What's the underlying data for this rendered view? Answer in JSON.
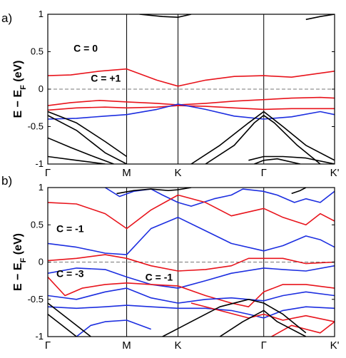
{
  "chart_data": [
    {
      "type": "line",
      "panel_label": "a)",
      "ylabel": "E − E",
      "ylabel_sub": "F",
      "ylabel_unit": " (eV)",
      "ylim": [
        -1,
        1
      ],
      "xlim": [
        0,
        1
      ],
      "yticks": [
        -1,
        -0.5,
        0,
        0.5,
        1
      ],
      "ytick_labels": [
        "-1",
        "-0.5",
        "0",
        "0.5",
        "1"
      ],
      "xticks": [
        0,
        0.275,
        0.454,
        0.753,
        1
      ],
      "xtick_labels": [
        "Γ",
        "M",
        "K",
        "Γ",
        "K'"
      ],
      "fermi_level": 0,
      "annotations": [
        {
          "text": "C = 0",
          "x": 0.09,
          "y": 0.5
        },
        {
          "text": "C = +1",
          "x": 0.15,
          "y": 0.1
        }
      ],
      "colors": {
        "red": "#e8141c",
        "blue": "#1c2ee0",
        "black": "#000000",
        "pink": "#e040e0"
      },
      "series": [
        {
          "color": "red",
          "x": [
            0,
            0.08,
            0.18,
            0.275,
            0.38,
            0.454,
            0.55,
            0.65,
            0.753,
            0.85,
            1
          ],
          "y": [
            0.18,
            0.19,
            0.24,
            0.27,
            0.12,
            0.04,
            0.12,
            0.17,
            0.18,
            0.16,
            0.24
          ]
        },
        {
          "color": "red",
          "x": [
            0,
            0.08,
            0.18,
            0.275,
            0.38,
            0.454,
            0.55,
            0.65,
            0.753,
            0.85,
            0.95,
            1
          ],
          "y": [
            -0.22,
            -0.18,
            -0.15,
            -0.17,
            -0.19,
            -0.21,
            -0.19,
            -0.16,
            -0.14,
            -0.12,
            -0.11,
            -0.12
          ]
        },
        {
          "color": "red",
          "x": [
            0,
            0.1,
            0.2,
            0.275,
            0.38,
            0.454,
            0.55,
            0.65,
            0.753,
            0.85,
            1
          ],
          "y": [
            -0.28,
            -0.25,
            -0.24,
            -0.25,
            -0.24,
            -0.22,
            -0.23,
            -0.25,
            -0.27,
            -0.26,
            -0.26
          ]
        },
        {
          "color": "blue",
          "x": [
            0,
            0.1,
            0.2,
            0.275,
            0.38,
            0.454,
            0.55,
            0.65,
            0.753,
            0.85,
            0.95,
            1
          ],
          "y": [
            -0.4,
            -0.39,
            -0.36,
            -0.34,
            -0.27,
            -0.2,
            -0.27,
            -0.36,
            -0.4,
            -0.37,
            -0.3,
            -0.34
          ]
        },
        {
          "color": "black",
          "x": [
            0,
            0.1,
            0.2,
            0.275
          ],
          "y": [
            -0.3,
            -0.45,
            -0.7,
            -0.9
          ]
        },
        {
          "color": "black",
          "x": [
            0,
            0.1,
            0.2,
            0.275
          ],
          "y": [
            -0.35,
            -0.55,
            -0.85,
            -1.0
          ]
        },
        {
          "color": "black",
          "x": [
            0,
            0.08,
            0.16,
            0.23
          ],
          "y": [
            -0.65,
            -0.78,
            -0.9,
            -1.0
          ]
        },
        {
          "color": "black",
          "x": [
            0,
            0.1,
            0.2
          ],
          "y": [
            -0.9,
            -0.95,
            -1.0
          ]
        },
        {
          "color": "black",
          "x": [
            0.5,
            0.6,
            0.7,
            0.753,
            0.82,
            0.9,
            1
          ],
          "y": [
            -1.0,
            -0.75,
            -0.45,
            -0.3,
            -0.5,
            -0.75,
            -0.95
          ]
        },
        {
          "color": "black",
          "x": [
            0.55,
            0.65,
            0.72,
            0.753,
            0.79,
            0.87,
            0.95
          ],
          "y": [
            -1.0,
            -0.75,
            -0.45,
            -0.35,
            -0.45,
            -0.75,
            -1.0
          ]
        },
        {
          "color": "black",
          "x": [
            0.7,
            0.753,
            0.82,
            0.9,
            1
          ],
          "y": [
            -0.95,
            -0.9,
            -0.9,
            -0.92,
            -1.0
          ]
        },
        {
          "color": "black",
          "x": [
            0.72,
            0.753,
            0.8,
            0.88
          ],
          "y": [
            -1.0,
            -0.95,
            -0.93,
            -1.0
          ]
        },
        {
          "color": "black",
          "x": [
            0.32,
            0.4,
            0.454,
            0.5
          ],
          "y": [
            1.0,
            0.97,
            0.96,
            1.0
          ]
        },
        {
          "color": "black",
          "x": [
            0.9,
            0.95,
            1
          ],
          "y": [
            0.93,
            0.97,
            1.0
          ]
        }
      ]
    },
    {
      "type": "line",
      "panel_label": "b)",
      "ylabel": "E − E",
      "ylabel_sub": "F",
      "ylabel_unit": " (eV)",
      "ylim": [
        -1,
        1
      ],
      "xlim": [
        0,
        1
      ],
      "yticks": [
        -1,
        -0.5,
        0,
        0.5,
        1
      ],
      "ytick_labels": [
        "-1",
        "-0.5",
        "0",
        "0.5",
        "1"
      ],
      "xticks": [
        0,
        0.275,
        0.454,
        0.753,
        1
      ],
      "xtick_labels": [
        "Γ",
        "M",
        "K",
        "Γ",
        "K'"
      ],
      "fermi_level": 0,
      "annotations": [
        {
          "text": "C = -1",
          "x": 0.03,
          "y": 0.4
        },
        {
          "text": "C = -3",
          "x": 0.03,
          "y": -0.2
        },
        {
          "text": "C = -1",
          "x": 0.34,
          "y": -0.25
        }
      ],
      "colors": {
        "red": "#e8141c",
        "blue": "#1c2ee0",
        "black": "#000000",
        "pink": "#e040e0"
      },
      "series": [
        {
          "color": "blue",
          "x": [
            0.2,
            0.25,
            0.3,
            0.36,
            0.4,
            0.454
          ],
          "y": [
            1.0,
            0.88,
            0.95,
            0.98,
            0.9,
            0.8
          ]
        },
        {
          "color": "blue",
          "x": [
            0.454,
            0.5,
            0.58,
            0.64,
            0.68,
            0.75,
            0.8,
            0.86,
            0.9,
            0.95,
            1
          ],
          "y": [
            0.8,
            0.75,
            0.85,
            0.9,
            0.98,
            0.95,
            0.9,
            0.8,
            0.85,
            0.8,
            0.95
          ]
        },
        {
          "color": "red",
          "x": [
            0,
            0.1,
            0.2,
            0.275,
            0.36,
            0.454,
            0.55,
            0.64,
            0.753,
            0.82,
            0.9,
            0.95,
            1
          ],
          "y": [
            0.8,
            0.78,
            0.65,
            0.45,
            0.7,
            0.9,
            0.8,
            0.62,
            0.72,
            0.6,
            0.5,
            0.65,
            0.55
          ]
        },
        {
          "color": "blue",
          "x": [
            0,
            0.1,
            0.2,
            0.275,
            0.36,
            0.454,
            0.55,
            0.64,
            0.753,
            0.82,
            0.9,
            0.95,
            1
          ],
          "y": [
            0.25,
            0.2,
            0.12,
            0.1,
            0.45,
            0.6,
            0.42,
            0.25,
            0.15,
            0.22,
            0.35,
            0.3,
            0.2
          ]
        },
        {
          "color": "red",
          "x": [
            0,
            0.1,
            0.2,
            0.275,
            0.36,
            0.454,
            0.55,
            0.64,
            0.7,
            0.753,
            0.82,
            0.9,
            1
          ],
          "y": [
            0.02,
            0.05,
            0.1,
            0.05,
            -0.05,
            -0.12,
            -0.1,
            -0.05,
            0.05,
            0.05,
            0.05,
            -0.02,
            0.0
          ]
        },
        {
          "color": "blue",
          "x": [
            0,
            0.1,
            0.2,
            0.275,
            0.36,
            0.454,
            0.55,
            0.64,
            0.753,
            0.82,
            0.9,
            1
          ],
          "y": [
            -0.15,
            -0.08,
            -0.1,
            -0.2,
            -0.3,
            -0.35,
            -0.25,
            -0.15,
            -0.08,
            -0.1,
            -0.12,
            -0.05
          ]
        },
        {
          "color": "red",
          "x": [
            0,
            0.06,
            0.12,
            0.2,
            0.275,
            0.36,
            0.454,
            0.55,
            0.64,
            0.7,
            0.753,
            0.82,
            0.9,
            1
          ],
          "y": [
            -0.2,
            -0.45,
            -0.35,
            -0.3,
            -0.28,
            -0.3,
            -0.32,
            -0.45,
            -0.55,
            -0.6,
            -0.4,
            -0.3,
            -0.3,
            -0.35
          ]
        },
        {
          "color": "blue",
          "x": [
            0,
            0.1,
            0.2,
            0.275,
            0.36,
            0.454,
            0.55,
            0.64,
            0.753,
            0.82,
            0.9,
            1
          ],
          "y": [
            -0.45,
            -0.5,
            -0.4,
            -0.35,
            -0.48,
            -0.55,
            -0.5,
            -0.48,
            -0.52,
            -0.45,
            -0.4,
            -0.45
          ]
        },
        {
          "color": "blue",
          "x": [
            0,
            0.1,
            0.2,
            0.275,
            0.36,
            0.454,
            0.55,
            0.64,
            0.7,
            0.753,
            0.82,
            0.9,
            1
          ],
          "y": [
            -0.6,
            -0.62,
            -0.6,
            -0.58,
            -0.6,
            -0.62,
            -0.62,
            -0.65,
            -0.7,
            -0.75,
            -0.65,
            -0.6,
            -0.62
          ]
        },
        {
          "color": "red",
          "x": [
            0.5,
            0.6,
            0.7,
            0.753,
            0.82,
            0.9,
            1
          ],
          "y": [
            -0.55,
            -0.65,
            -0.75,
            -0.7,
            -0.78,
            -0.72,
            -0.8
          ]
        },
        {
          "color": "blue",
          "x": [
            0.1,
            0.15,
            0.2,
            0.275,
            0.36
          ],
          "y": [
            -1.0,
            -0.85,
            -0.8,
            -0.78,
            -0.9
          ]
        },
        {
          "color": "red",
          "x": [
            0.78,
            0.85,
            0.9,
            0.95,
            1
          ],
          "y": [
            -1.0,
            -0.85,
            -0.9,
            -0.95,
            -0.8
          ]
        },
        {
          "color": "black",
          "x": [
            0,
            0.05,
            0.1,
            0.15
          ],
          "y": [
            -0.55,
            -0.7,
            -0.85,
            -1.0
          ]
        },
        {
          "color": "black",
          "x": [
            0,
            0.05,
            0.1
          ],
          "y": [
            -0.7,
            -0.85,
            -1.0
          ]
        },
        {
          "color": "black",
          "x": [
            0.4,
            0.5,
            0.6,
            0.7,
            0.753,
            0.82,
            0.9
          ],
          "y": [
            -1.0,
            -0.8,
            -0.6,
            -0.5,
            -0.55,
            -0.7,
            -0.95
          ]
        },
        {
          "color": "black",
          "x": [
            0.6,
            0.68,
            0.753,
            0.8,
            0.9
          ],
          "y": [
            -1.0,
            -0.8,
            -0.65,
            -0.8,
            -1.0
          ]
        },
        {
          "color": "black",
          "x": [
            0.24,
            0.3,
            0.36,
            0.42,
            0.454,
            0.5
          ],
          "y": [
            0.92,
            0.96,
            0.98,
            0.96,
            0.97,
            1.0
          ]
        },
        {
          "color": "black",
          "x": [
            0.85,
            0.88,
            0.9
          ],
          "y": [
            0.92,
            0.96,
            1.0
          ]
        }
      ]
    }
  ]
}
